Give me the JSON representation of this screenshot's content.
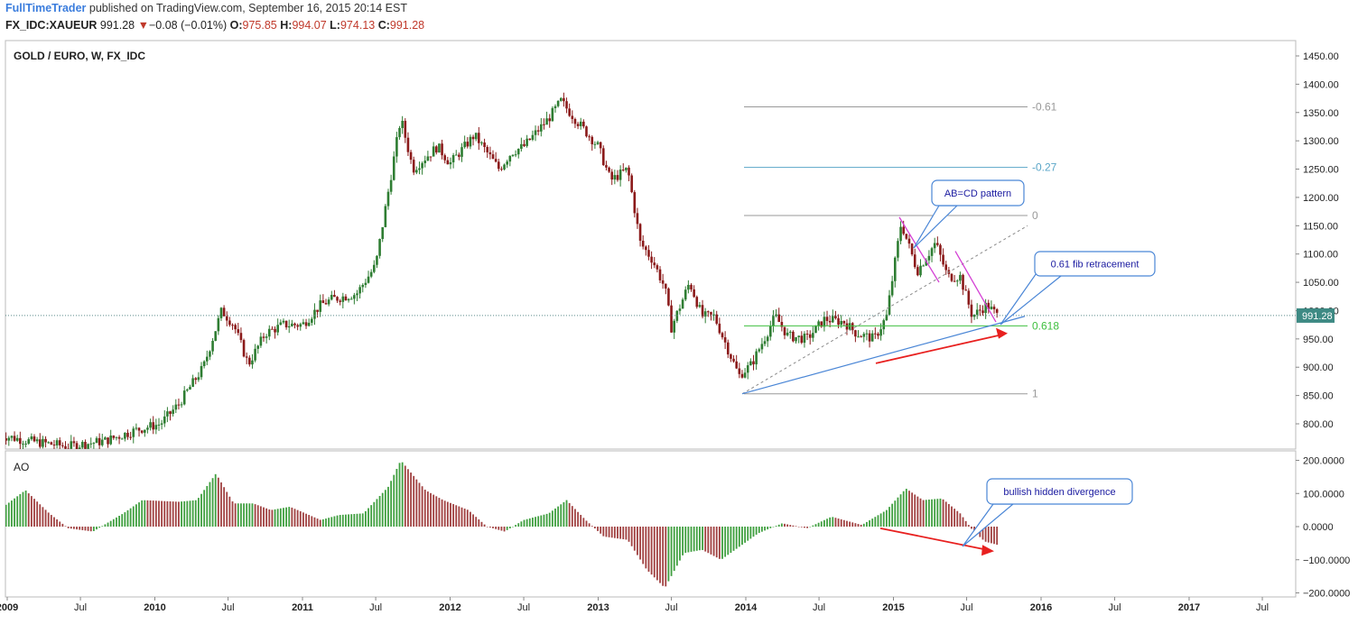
{
  "header": {
    "publisher": "FullTimeTrader",
    "published": "published on TradingView.com, September 16, 2015 20:14 EST",
    "symbol": "FX_IDC:XAUEUR",
    "last": "991.28",
    "change_arrow": "▼",
    "change": "−0.08 (−0.01%)",
    "o_label": "O:",
    "o_value": "975.85",
    "h_label": "H:",
    "h_value": "994.07",
    "l_label": "L:",
    "l_value": "974.13",
    "c_label": "C:",
    "c_value": "991.28"
  },
  "chart_data": {
    "type": "candlestick",
    "title": "GOLD / EURO, W, FX_IDC",
    "x_ticks": [
      "2009",
      "Jul",
      "2010",
      "Jul",
      "2011",
      "Jul",
      "2012",
      "Jul",
      "2013",
      "Jul",
      "2014",
      "Jul",
      "2015",
      "Jul",
      "2016",
      "Jul",
      "2017",
      "Jul"
    ],
    "y_ticks": [
      "1450.00",
      "1400.00",
      "1350.00",
      "1300.00",
      "1250.00",
      "1200.00",
      "1150.00",
      "1100.00",
      "1050.00",
      "1000.00",
      "950.00",
      "900.00",
      "850.00",
      "800.00"
    ],
    "ylim": [
      730,
      1480
    ],
    "last_price": 991.28,
    "last_price_label": "991.28",
    "price_path": [
      [
        "2008-12-15",
        780
      ],
      [
        "2009-02-20",
        770
      ],
      [
        "2009-06-01",
        760
      ],
      [
        "2009-09-01",
        770
      ],
      [
        "2009-11-20",
        790
      ],
      [
        "2010-01-15",
        800
      ],
      [
        "2010-03-01",
        835
      ],
      [
        "2010-05-01",
        900
      ],
      [
        "2010-06-15",
        1000
      ],
      [
        "2010-07-15",
        975
      ],
      [
        "2010-08-20",
        905
      ],
      [
        "2010-10-01",
        960
      ],
      [
        "2010-11-15",
        975
      ],
      [
        "2011-01-01",
        975
      ],
      [
        "2011-02-15",
        1010
      ],
      [
        "2011-03-15",
        1020
      ],
      [
        "2011-05-15",
        1030
      ],
      [
        "2011-07-01",
        1080
      ],
      [
        "2011-08-01",
        1210
      ],
      [
        "2011-09-01",
        1340
      ],
      [
        "2011-10-01",
        1250
      ],
      [
        "2011-12-01",
        1290
      ],
      [
        "2012-01-01",
        1260
      ],
      [
        "2012-03-01",
        1310
      ],
      [
        "2012-05-01",
        1250
      ],
      [
        "2012-06-01",
        1280
      ],
      [
        "2012-07-01",
        1290
      ],
      [
        "2012-09-01",
        1340
      ],
      [
        "2012-10-01",
        1370
      ],
      [
        "2012-11-15",
        1330
      ],
      [
        "2013-01-01",
        1290
      ],
      [
        "2013-02-01",
        1230
      ],
      [
        "2013-03-15",
        1250
      ],
      [
        "2013-04-15",
        1120
      ],
      [
        "2013-05-15",
        1090
      ],
      [
        "2013-06-15",
        1040
      ],
      [
        "2013-07-01",
        970
      ],
      [
        "2013-08-15",
        1050
      ],
      [
        "2013-09-15",
        990
      ],
      [
        "2013-10-15",
        990
      ],
      [
        "2013-12-15",
        885
      ],
      [
        "2014-01-15",
        905
      ],
      [
        "2014-03-15",
        990
      ],
      [
        "2014-04-15",
        955
      ],
      [
        "2014-06-01",
        950
      ],
      [
        "2014-07-15",
        985
      ],
      [
        "2014-09-01",
        980
      ],
      [
        "2014-10-01",
        960
      ],
      [
        "2014-11-15",
        950
      ],
      [
        "2014-12-15",
        990
      ],
      [
        "2015-01-20",
        1155
      ],
      [
        "2015-03-01",
        1070
      ],
      [
        "2015-04-15",
        1120
      ],
      [
        "2015-05-15",
        1060
      ],
      [
        "2015-06-15",
        1060
      ],
      [
        "2015-07-15",
        990
      ],
      [
        "2015-08-20",
        1010
      ],
      [
        "2015-09-15",
        991
      ]
    ],
    "fib_levels": [
      {
        "label": "-0.61",
        "value": 1360,
        "color": "#999999"
      },
      {
        "label": "-0.27",
        "value": 1253,
        "color": "#5aa6c8"
      },
      {
        "label": "0",
        "value": 1168,
        "color": "#999999"
      },
      {
        "label": "0.618",
        "value": 973,
        "color": "#3fbf3f"
      },
      {
        "label": "1",
        "value": 853,
        "color": "#999999"
      }
    ],
    "callouts": [
      "AB=CD pattern",
      "0.61 fib retracement",
      "bullish hidden divergence"
    ],
    "indicator": {
      "name": "AO",
      "y_ticks": [
        "200.0000",
        "100.0000",
        "0.0000",
        "−100.0000",
        "−200.0000"
      ],
      "ylim": [
        -220,
        215
      ],
      "path": [
        [
          "2008-12-01",
          40
        ],
        [
          "2009-02-15",
          110
        ],
        [
          "2009-04-15",
          40
        ],
        [
          "2009-06-01",
          -5
        ],
        [
          "2009-08-01",
          -15
        ],
        [
          "2009-10-15",
          40
        ],
        [
          "2009-12-01",
          80
        ],
        [
          "2010-03-01",
          75
        ],
        [
          "2010-04-15",
          80
        ],
        [
          "2010-06-01",
          160
        ],
        [
          "2010-07-15",
          70
        ],
        [
          "2010-09-01",
          70
        ],
        [
          "2010-10-15",
          50
        ],
        [
          "2010-12-01",
          60
        ],
        [
          "2011-02-15",
          20
        ],
        [
          "2011-04-01",
          35
        ],
        [
          "2011-06-01",
          40
        ],
        [
          "2011-08-01",
          120
        ],
        [
          "2011-09-01",
          200
        ],
        [
          "2011-11-01",
          110
        ],
        [
          "2011-12-15",
          80
        ],
        [
          "2012-02-15",
          50
        ],
        [
          "2012-04-01",
          0
        ],
        [
          "2012-05-15",
          -15
        ],
        [
          "2012-07-01",
          20
        ],
        [
          "2012-09-01",
          40
        ],
        [
          "2012-10-15",
          80
        ],
        [
          "2012-12-01",
          20
        ],
        [
          "2013-01-15",
          -30
        ],
        [
          "2013-03-15",
          -40
        ],
        [
          "2013-05-01",
          -130
        ],
        [
          "2013-06-15",
          -185
        ],
        [
          "2013-08-01",
          -80
        ],
        [
          "2013-09-15",
          -70
        ],
        [
          "2013-11-01",
          -100
        ],
        [
          "2014-02-01",
          -20
        ],
        [
          "2014-04-01",
          10
        ],
        [
          "2014-06-01",
          -5
        ],
        [
          "2014-08-01",
          30
        ],
        [
          "2014-10-15",
          5
        ],
        [
          "2014-12-15",
          50
        ],
        [
          "2015-02-01",
          115
        ],
        [
          "2015-03-15",
          80
        ],
        [
          "2015-05-01",
          85
        ],
        [
          "2015-06-15",
          40
        ],
        [
          "2015-07-15",
          -10
        ],
        [
          "2015-08-15",
          -45
        ],
        [
          "2015-09-15",
          -55
        ]
      ]
    }
  },
  "colors": {
    "up": "#2e7d32",
    "down": "#8b1a1a",
    "ao_up": "#3f9f3f",
    "ao_down": "#a04040",
    "trendline": "#4a86d6",
    "arrow": "#e8201f",
    "magenta": "#d43fd4",
    "grid_dashed": "#8a8a8a"
  }
}
